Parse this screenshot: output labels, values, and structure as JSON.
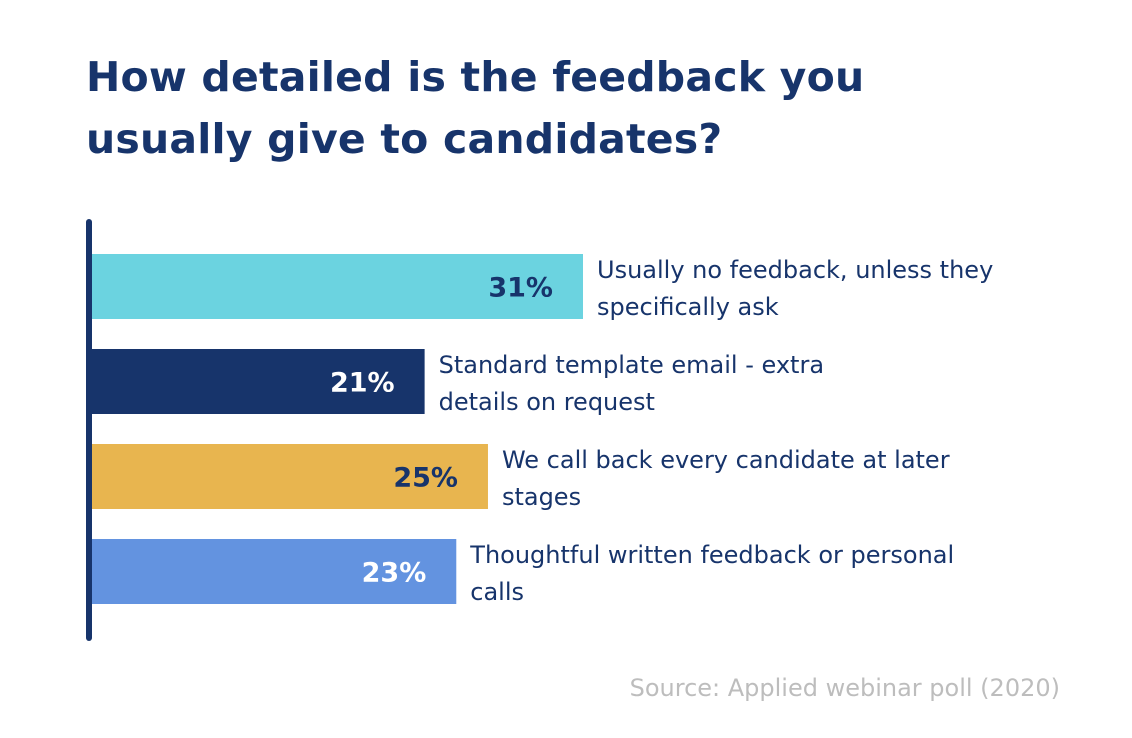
{
  "chart_data": {
    "type": "bar",
    "orientation": "horizontal",
    "title": "How detailed is the feedback you usually give to candidates?",
    "categories": [
      "Usually no feedback, unless they specifically ask",
      "Standard template email - extra details on request",
      "We call back every candidate at later stages",
      "Thoughtful written feedback or personal calls"
    ],
    "values": [
      31,
      21,
      25,
      23
    ],
    "value_labels": [
      "31%",
      "21%",
      "25%",
      "23%"
    ],
    "category_lines": [
      [
        "Usually no feedback, unless they",
        "specifically ask"
      ],
      [
        "Standard template email - extra",
        "details on request"
      ],
      [
        "We call back every candidate at later",
        "stages"
      ],
      [
        "Thoughtful written feedback or personal",
        "calls"
      ]
    ],
    "colors": [
      "#6bd3e0",
      "#17346b",
      "#e8b54f",
      "#6393e0"
    ],
    "value_label_colors": [
      "#17346b",
      "#ffffff",
      "#17346b",
      "#ffffff"
    ],
    "xlim": [
      0,
      31
    ],
    "grid": false,
    "legend": "none"
  },
  "source": "Source: Applied webinar poll (2020)"
}
